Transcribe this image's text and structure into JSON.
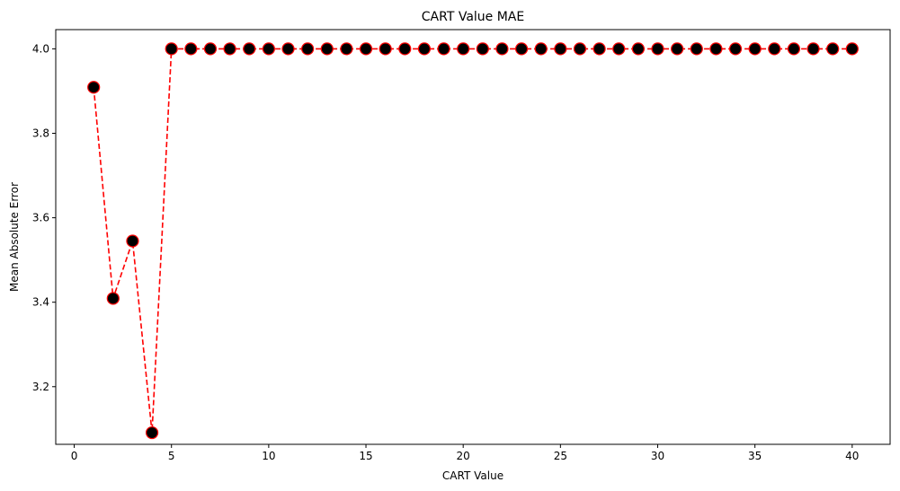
{
  "chart_data": {
    "type": "line",
    "title": "CART Value MAE",
    "xlabel": "CART Value",
    "ylabel": "Mean Absolute Error",
    "xlim": [
      -0.95,
      41.95
    ],
    "ylim": [
      3.0635,
      4.0455
    ],
    "xticks": [
      0,
      5,
      10,
      15,
      20,
      25,
      30,
      35,
      40
    ],
    "yticks": [
      3.2,
      3.4,
      3.6,
      3.8,
      4.0
    ],
    "xtick_labels": [
      "0",
      "5",
      "10",
      "15",
      "20",
      "25",
      "30",
      "35",
      "40"
    ],
    "ytick_labels": [
      "3.2",
      "3.4",
      "3.6",
      "3.8",
      "4.0"
    ],
    "grid": false,
    "legend": "none",
    "series": [
      {
        "line_color": "#ff0000",
        "line_style": "dashed",
        "marker": "circle",
        "marker_face_color": "#000000",
        "marker_edge_color": "#ff0000",
        "x": [
          1,
          2,
          3,
          4,
          5,
          6,
          7,
          8,
          9,
          10,
          11,
          12,
          13,
          14,
          15,
          16,
          17,
          18,
          19,
          20,
          21,
          22,
          23,
          24,
          25,
          26,
          27,
          28,
          29,
          30,
          31,
          32,
          33,
          34,
          35,
          36,
          37,
          38,
          39,
          40
        ],
        "y": [
          3.909,
          3.409,
          3.545,
          3.091,
          4.0,
          4.0,
          4.0,
          4.0,
          4.0,
          4.0,
          4.0,
          4.0,
          4.0,
          4.0,
          4.0,
          4.0,
          4.0,
          4.0,
          4.0,
          4.0,
          4.0,
          4.0,
          4.0,
          4.0,
          4.0,
          4.0,
          4.0,
          4.0,
          4.0,
          4.0,
          4.0,
          4.0,
          4.0,
          4.0,
          4.0,
          4.0,
          4.0,
          4.0,
          4.0,
          4.0
        ]
      }
    ]
  }
}
